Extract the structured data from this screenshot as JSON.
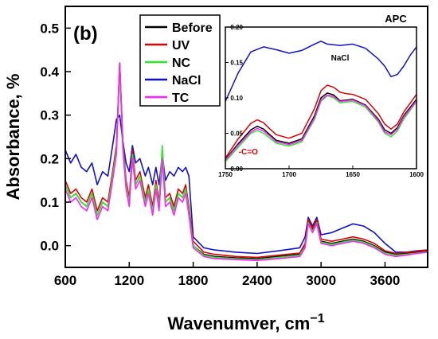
{
  "chart_data": [
    {
      "type": "line",
      "panel_label": "(b)",
      "xlabel": "Wavenumver, cm",
      "xlabel_superscript": "−1",
      "ylabel": "Absorbance, %",
      "xlim": [
        600,
        4000
      ],
      "ylim": [
        -0.05,
        0.55
      ],
      "x_ticks": [
        600,
        1200,
        1800,
        2400,
        3000,
        3600
      ],
      "x_tick_labels": [
        "600",
        "1200",
        "1800",
        "2400",
        "3000",
        "3600"
      ],
      "y_ticks": [
        0.0,
        0.1,
        0.2,
        0.3,
        0.4,
        0.5
      ],
      "y_tick_labels": [
        "0.0",
        "0.1",
        "0.2",
        "0.3",
        "0.4",
        "0.5"
      ],
      "legend_position": "top-left",
      "series": [
        {
          "name": "Before",
          "color": "#000000",
          "x": [
            600,
            650,
            700,
            750,
            800,
            850,
            900,
            950,
            1000,
            1050,
            1080,
            1110,
            1140,
            1170,
            1200,
            1230,
            1260,
            1300,
            1350,
            1380,
            1420,
            1450,
            1480,
            1510,
            1540,
            1580,
            1620,
            1660,
            1700,
            1730,
            1760,
            1800,
            1900,
            2000,
            2200,
            2400,
            2600,
            2800,
            2850,
            2880,
            2920,
            2960,
            3000,
            3100,
            3200,
            3300,
            3400,
            3500,
            3600,
            3700,
            3800,
            3900,
            4000
          ],
          "y": [
            0.14,
            0.11,
            0.12,
            0.1,
            0.09,
            0.12,
            0.07,
            0.1,
            0.09,
            0.17,
            0.22,
            0.42,
            0.23,
            0.14,
            0.1,
            0.21,
            0.14,
            0.16,
            0.1,
            0.13,
            0.08,
            0.14,
            0.09,
            0.21,
            0.1,
            0.11,
            0.08,
            0.12,
            0.11,
            0.13,
            0.08,
            0.0,
            -0.02,
            -0.025,
            -0.028,
            -0.03,
            -0.025,
            -0.02,
            0.0,
            0.055,
            0.035,
            0.055,
            0.01,
            0.005,
            0.01,
            0.015,
            0.01,
            0.0,
            -0.015,
            -0.02,
            -0.018,
            -0.015,
            -0.012
          ]
        },
        {
          "name": "UV",
          "color": "#e00000",
          "x": [
            600,
            650,
            700,
            750,
            800,
            850,
            900,
            950,
            1000,
            1050,
            1080,
            1110,
            1140,
            1170,
            1200,
            1230,
            1260,
            1300,
            1350,
            1380,
            1420,
            1450,
            1480,
            1510,
            1540,
            1580,
            1620,
            1660,
            1700,
            1730,
            1760,
            1800,
            1900,
            2000,
            2200,
            2400,
            2600,
            2800,
            2850,
            2880,
            2920,
            2960,
            3000,
            3100,
            3200,
            3300,
            3400,
            3500,
            3600,
            3700,
            3800,
            3900,
            4000
          ],
          "y": [
            0.15,
            0.12,
            0.13,
            0.11,
            0.1,
            0.13,
            0.08,
            0.11,
            0.1,
            0.18,
            0.23,
            0.42,
            0.24,
            0.15,
            0.11,
            0.22,
            0.15,
            0.17,
            0.11,
            0.14,
            0.09,
            0.15,
            0.1,
            0.22,
            0.11,
            0.12,
            0.09,
            0.13,
            0.12,
            0.14,
            0.09,
            0.01,
            -0.015,
            -0.02,
            -0.025,
            -0.027,
            -0.022,
            -0.017,
            0.005,
            0.06,
            0.04,
            0.06,
            0.015,
            0.01,
            0.015,
            0.02,
            0.015,
            0.005,
            -0.012,
            -0.018,
            -0.016,
            -0.013,
            -0.01
          ]
        },
        {
          "name": "NC",
          "color": "#2ee82e",
          "x": [
            600,
            650,
            700,
            750,
            800,
            850,
            900,
            950,
            1000,
            1050,
            1080,
            1110,
            1140,
            1170,
            1200,
            1230,
            1260,
            1300,
            1350,
            1380,
            1420,
            1450,
            1480,
            1510,
            1540,
            1580,
            1620,
            1660,
            1700,
            1730,
            1760,
            1800,
            1900,
            2000,
            2200,
            2400,
            2600,
            2800,
            2850,
            2880,
            2920,
            2960,
            3000,
            3100,
            3200,
            3300,
            3400,
            3500,
            3600,
            3700,
            3800,
            3900,
            4000
          ],
          "y": [
            0.14,
            0.11,
            0.12,
            0.1,
            0.09,
            0.12,
            0.07,
            0.1,
            0.09,
            0.17,
            0.22,
            0.42,
            0.23,
            0.14,
            0.1,
            0.21,
            0.14,
            0.16,
            0.1,
            0.13,
            0.08,
            0.14,
            0.09,
            0.23,
            0.1,
            0.11,
            0.08,
            0.12,
            0.11,
            0.13,
            0.08,
            0.0,
            -0.022,
            -0.027,
            -0.03,
            -0.032,
            -0.027,
            -0.022,
            -0.002,
            0.053,
            0.033,
            0.053,
            0.008,
            0.003,
            0.008,
            0.013,
            0.008,
            -0.002,
            -0.017,
            -0.022,
            -0.02,
            -0.017,
            -0.014
          ]
        },
        {
          "name": "NaCl",
          "color": "#1010d0",
          "x": [
            600,
            650,
            700,
            750,
            800,
            850,
            900,
            950,
            1000,
            1050,
            1080,
            1110,
            1140,
            1170,
            1200,
            1230,
            1260,
            1300,
            1350,
            1380,
            1420,
            1450,
            1480,
            1510,
            1540,
            1580,
            1620,
            1660,
            1700,
            1730,
            1760,
            1800,
            1900,
            2000,
            2200,
            2400,
            2600,
            2800,
            2850,
            2880,
            2920,
            2960,
            3000,
            3100,
            3200,
            3300,
            3400,
            3500,
            3600,
            3700,
            3800,
            3900,
            4000
          ],
          "y": [
            0.22,
            0.19,
            0.21,
            0.18,
            0.17,
            0.19,
            0.14,
            0.17,
            0.16,
            0.24,
            0.29,
            0.3,
            0.24,
            0.19,
            0.17,
            0.23,
            0.19,
            0.2,
            0.16,
            0.18,
            0.14,
            0.18,
            0.14,
            0.21,
            0.15,
            0.17,
            0.16,
            0.18,
            0.17,
            0.18,
            0.16,
            0.02,
            -0.005,
            -0.01,
            -0.015,
            -0.018,
            -0.012,
            -0.005,
            0.02,
            0.065,
            0.045,
            0.065,
            0.025,
            0.03,
            0.04,
            0.05,
            0.045,
            0.03,
            0.005,
            -0.015,
            -0.015,
            -0.012,
            -0.01
          ]
        },
        {
          "name": "TC",
          "color": "#ff22ff",
          "x": [
            600,
            650,
            700,
            750,
            800,
            850,
            900,
            950,
            1000,
            1050,
            1080,
            1110,
            1140,
            1170,
            1200,
            1230,
            1260,
            1300,
            1350,
            1380,
            1420,
            1450,
            1480,
            1510,
            1540,
            1580,
            1620,
            1660,
            1700,
            1730,
            1760,
            1800,
            1900,
            2000,
            2200,
            2400,
            2600,
            2800,
            2850,
            2880,
            2920,
            2960,
            3000,
            3100,
            3200,
            3300,
            3400,
            3500,
            3600,
            3700,
            3800,
            3900,
            4000
          ],
          "y": [
            0.13,
            0.1,
            0.11,
            0.09,
            0.08,
            0.11,
            0.06,
            0.09,
            0.08,
            0.16,
            0.21,
            0.42,
            0.22,
            0.13,
            0.09,
            0.2,
            0.13,
            0.15,
            0.09,
            0.12,
            0.07,
            0.13,
            0.08,
            0.2,
            0.09,
            0.1,
            0.07,
            0.11,
            0.1,
            0.12,
            0.07,
            -0.005,
            -0.025,
            -0.03,
            -0.032,
            -0.034,
            -0.03,
            -0.025,
            -0.005,
            0.05,
            0.03,
            0.05,
            0.005,
            0.0,
            0.005,
            0.01,
            0.005,
            -0.005,
            -0.02,
            -0.025,
            -0.022,
            -0.018,
            -0.015
          ]
        }
      ]
    },
    {
      "type": "line",
      "title": "APC",
      "xlim": [
        1750,
        1600
      ],
      "ylim": [
        0.0,
        0.2
      ],
      "x_ticks": [
        1750,
        1700,
        1650,
        1600
      ],
      "x_tick_labels": [
        "1750",
        "1700",
        "1650",
        "1600"
      ],
      "y_ticks": [
        0.0,
        0.05,
        0.1,
        0.15,
        0.2
      ],
      "y_tick_labels": [
        "0.00",
        "0.05",
        "0.10",
        "0.15",
        "0.20"
      ],
      "annotations": [
        {
          "text": "NaCl",
          "x": 1660,
          "y": 0.153,
          "color": "#000000"
        },
        {
          "text": "-C=O",
          "x": 1732,
          "y": 0.02,
          "color": "#e00000"
        }
      ],
      "series": [
        {
          "color": "#000000",
          "x": [
            1750,
            1740,
            1730,
            1725,
            1720,
            1715,
            1710,
            1700,
            1690,
            1680,
            1675,
            1670,
            1665,
            1660,
            1655,
            1650,
            1640,
            1630,
            1625,
            1620,
            1615,
            1610,
            1600
          ],
          "y": [
            0.013,
            0.035,
            0.055,
            0.06,
            0.056,
            0.048,
            0.04,
            0.036,
            0.042,
            0.075,
            0.1,
            0.107,
            0.104,
            0.096,
            0.097,
            0.098,
            0.09,
            0.07,
            0.055,
            0.05,
            0.058,
            0.075,
            0.098
          ]
        },
        {
          "color": "#e00000",
          "x": [
            1750,
            1740,
            1730,
            1725,
            1720,
            1715,
            1710,
            1700,
            1690,
            1680,
            1675,
            1670,
            1665,
            1660,
            1655,
            1650,
            1640,
            1630,
            1625,
            1620,
            1615,
            1610,
            1600
          ],
          "y": [
            0.015,
            0.042,
            0.064,
            0.069,
            0.065,
            0.056,
            0.048,
            0.043,
            0.05,
            0.085,
            0.11,
            0.118,
            0.115,
            0.108,
            0.106,
            0.105,
            0.098,
            0.078,
            0.063,
            0.056,
            0.063,
            0.08,
            0.105
          ]
        },
        {
          "color": "#2ee82e",
          "x": [
            1750,
            1740,
            1730,
            1725,
            1720,
            1715,
            1710,
            1700,
            1690,
            1680,
            1675,
            1670,
            1665,
            1660,
            1655,
            1650,
            1640,
            1630,
            1625,
            1620,
            1615,
            1610,
            1600
          ],
          "y": [
            0.01,
            0.03,
            0.05,
            0.054,
            0.05,
            0.043,
            0.036,
            0.032,
            0.038,
            0.07,
            0.095,
            0.103,
            0.1,
            0.093,
            0.094,
            0.095,
            0.087,
            0.066,
            0.05,
            0.045,
            0.053,
            0.07,
            0.095
          ]
        },
        {
          "color": "#1010d0",
          "x": [
            1750,
            1740,
            1730,
            1720,
            1710,
            1700,
            1690,
            1680,
            1675,
            1670,
            1660,
            1650,
            1640,
            1630,
            1625,
            1620,
            1615,
            1610,
            1605,
            1600
          ],
          "y": [
            0.095,
            0.135,
            0.165,
            0.172,
            0.168,
            0.163,
            0.167,
            0.176,
            0.18,
            0.176,
            0.174,
            0.176,
            0.17,
            0.155,
            0.145,
            0.13,
            0.133,
            0.145,
            0.16,
            0.172
          ]
        },
        {
          "color": "#ff22ff",
          "x": [
            1750,
            1740,
            1730,
            1725,
            1720,
            1715,
            1710,
            1700,
            1690,
            1680,
            1675,
            1670,
            1665,
            1660,
            1655,
            1650,
            1640,
            1630,
            1625,
            1620,
            1615,
            1610,
            1600
          ],
          "y": [
            0.012,
            0.033,
            0.052,
            0.057,
            0.053,
            0.046,
            0.038,
            0.034,
            0.04,
            0.072,
            0.097,
            0.104,
            0.102,
            0.095,
            0.096,
            0.097,
            0.089,
            0.068,
            0.052,
            0.048,
            0.056,
            0.073,
            0.096
          ]
        }
      ]
    }
  ]
}
